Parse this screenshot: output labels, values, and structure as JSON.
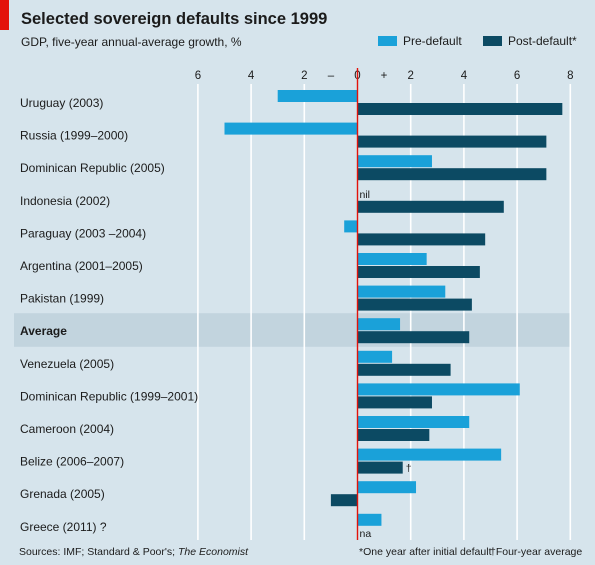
{
  "header": {
    "title": "Selected sovereign defaults since 1999",
    "subtitle": "GDP, five-year annual-average growth, %"
  },
  "axis": {
    "minus_sign": "–",
    "plus_sign": "+"
  },
  "footer": {
    "sources_prefix": "Sources: IMF; Standard & Poor's; ",
    "sources_italic": "The Economist",
    "footnote_1": "*One year after initial default",
    "footnote_2": "†Four-year average"
  },
  "colors": {
    "background": "#d6e4ec",
    "pre_default": "#1aa1d9",
    "post_default": "#0c4a63",
    "zero_line": "#e3120b",
    "highlight_band": "#c2d4de",
    "accent_tab": "#e3120b"
  },
  "chart_data": {
    "type": "bar",
    "orientation": "horizontal",
    "title": "Selected sovereign defaults since 1999",
    "subtitle": "GDP, five-year annual-average growth, %",
    "xlim": [
      -6,
      8
    ],
    "x_ticks": [
      {
        "value": -6,
        "label": "6"
      },
      {
        "value": -4,
        "label": "4"
      },
      {
        "value": -2,
        "label": "2"
      },
      {
        "value": 0,
        "label": "0"
      },
      {
        "value": 2,
        "label": "2"
      },
      {
        "value": 4,
        "label": "4"
      },
      {
        "value": 6,
        "label": "6"
      },
      {
        "value": 8,
        "label": "8"
      }
    ],
    "legend_placement": "top-right",
    "grid": true,
    "categories": [
      "Uruguay (2003)",
      "Russia (1999–2000)",
      "Dominican Republic (2005)",
      "Indonesia (2002)",
      "Paraguay (2003 –2004)",
      "Argentina (2001–2005)",
      "Pakistan (1999)",
      "Average",
      "Venezuela (2005)",
      "Dominican Republic (1999–2001)",
      "Cameroon (2004)",
      "Belize (2006–2007)",
      "Grenada (2005)",
      "Greece (2011) ?"
    ],
    "highlight_category": "Average",
    "series": [
      {
        "name": "Pre-default",
        "values": [
          -3.0,
          -5.0,
          2.8,
          0,
          -0.5,
          2.6,
          3.3,
          1.6,
          1.3,
          6.1,
          4.2,
          5.4,
          2.2,
          0.9
        ],
        "annotations": [
          null,
          null,
          null,
          "nil",
          null,
          null,
          null,
          null,
          null,
          null,
          null,
          null,
          null,
          null
        ]
      },
      {
        "name": "Post-default*",
        "values": [
          7.7,
          7.1,
          7.1,
          5.5,
          4.8,
          4.6,
          4.3,
          4.2,
          3.5,
          2.8,
          2.7,
          1.7,
          -1.0,
          null
        ],
        "annotations": [
          null,
          null,
          null,
          null,
          null,
          null,
          null,
          null,
          null,
          null,
          null,
          "†",
          null,
          "na"
        ]
      }
    ]
  }
}
